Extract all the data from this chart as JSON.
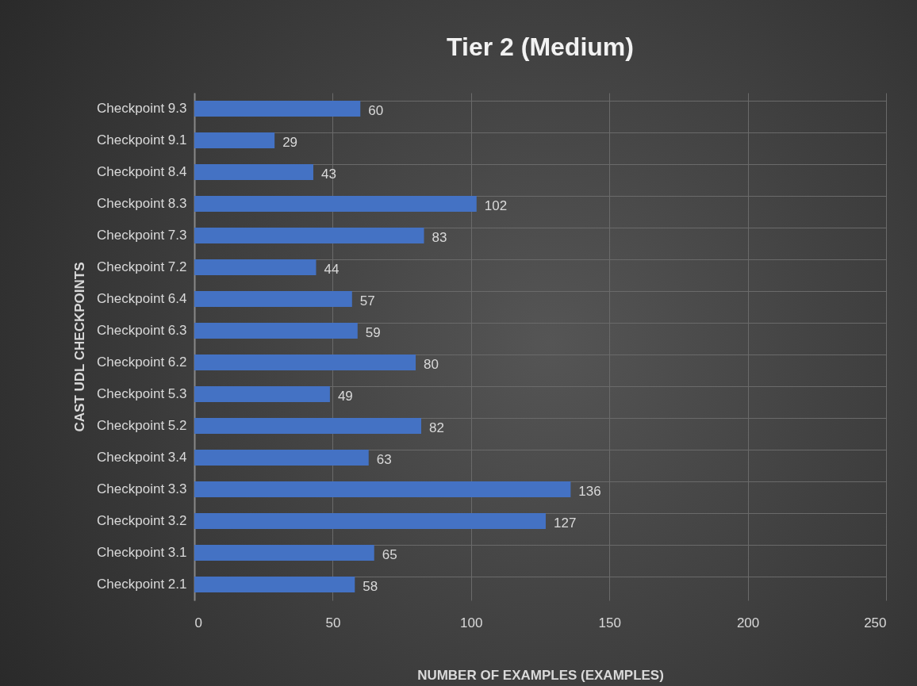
{
  "chart_data": {
    "type": "bar",
    "orientation": "horizontal",
    "title": "Tier 2 (Medium)",
    "xlabel": "NUMBER OF EXAMPLES (EXAMPLES)",
    "ylabel": "CAST UDL CHECKPOINTS",
    "categories": [
      "Checkpoint 9.3",
      "Checkpoint 9.1",
      "Checkpoint 8.4",
      "Checkpoint 8.3",
      "Checkpoint 7.3",
      "Checkpoint 7.2",
      "Checkpoint 6.4",
      "Checkpoint 6.3",
      "Checkpoint 6.2",
      "Checkpoint 5.3",
      "Checkpoint 5.2",
      "Checkpoint 3.4",
      "Checkpoint 3.3",
      "Checkpoint 3.2",
      "Checkpoint 3.1",
      "Checkpoint 2.1"
    ],
    "values": [
      60,
      29,
      43,
      102,
      83,
      44,
      57,
      59,
      80,
      49,
      82,
      63,
      136,
      127,
      65,
      58
    ],
    "color": "#4472c4",
    "xlim": [
      0,
      250
    ],
    "xticks": [
      0,
      50,
      100,
      150,
      200,
      250
    ],
    "grid": true,
    "data_labels": true
  }
}
